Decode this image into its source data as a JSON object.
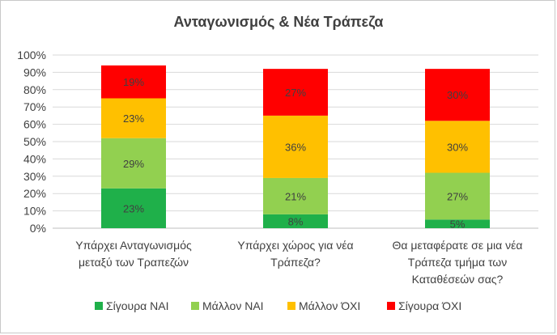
{
  "chart_data": {
    "type": "bar",
    "stacked": true,
    "title": "Ανταγωνισμός & Νέα Τράπεζα",
    "xlabel": "",
    "ylabel": "",
    "ylim": [
      0,
      100
    ],
    "y_ticks": [
      "0%",
      "10%",
      "20%",
      "30%",
      "40%",
      "50%",
      "60%",
      "70%",
      "80%",
      "90%",
      "100%"
    ],
    "grid": true,
    "legend_position": "bottom",
    "categories": [
      [
        "Υπάρχει Ανταγωνισμός",
        "μεταξύ των Τραπεζών"
      ],
      [
        "Υπάρχει χώρος για νέα",
        "Τράπεζα?"
      ],
      [
        "Θα μεταφέρατε σε μια νέα",
        "Τράπεζα τμήμα των",
        "Καταθέσεών σας?"
      ]
    ],
    "series": [
      {
        "name": "Σίγουρα ΝΑΙ",
        "color": "#1fb04a",
        "values": [
          23,
          8,
          5
        ],
        "labels": [
          "23%",
          "8%",
          "5%"
        ]
      },
      {
        "name": "Μάλλον ΝΑΙ",
        "color": "#92d050",
        "values": [
          29,
          21,
          27
        ],
        "labels": [
          "29%",
          "21%",
          "27%"
        ]
      },
      {
        "name": "Μάλλον ΌΧΙ",
        "color": "#ffc000",
        "values": [
          23,
          36,
          30
        ],
        "labels": [
          "23%",
          "36%",
          "30%"
        ]
      },
      {
        "name": "Σίγουρα ΌΧΙ",
        "color": "#ff0000",
        "values": [
          19,
          27,
          30
        ],
        "labels": [
          "19%",
          "27%",
          "30%"
        ]
      }
    ]
  }
}
